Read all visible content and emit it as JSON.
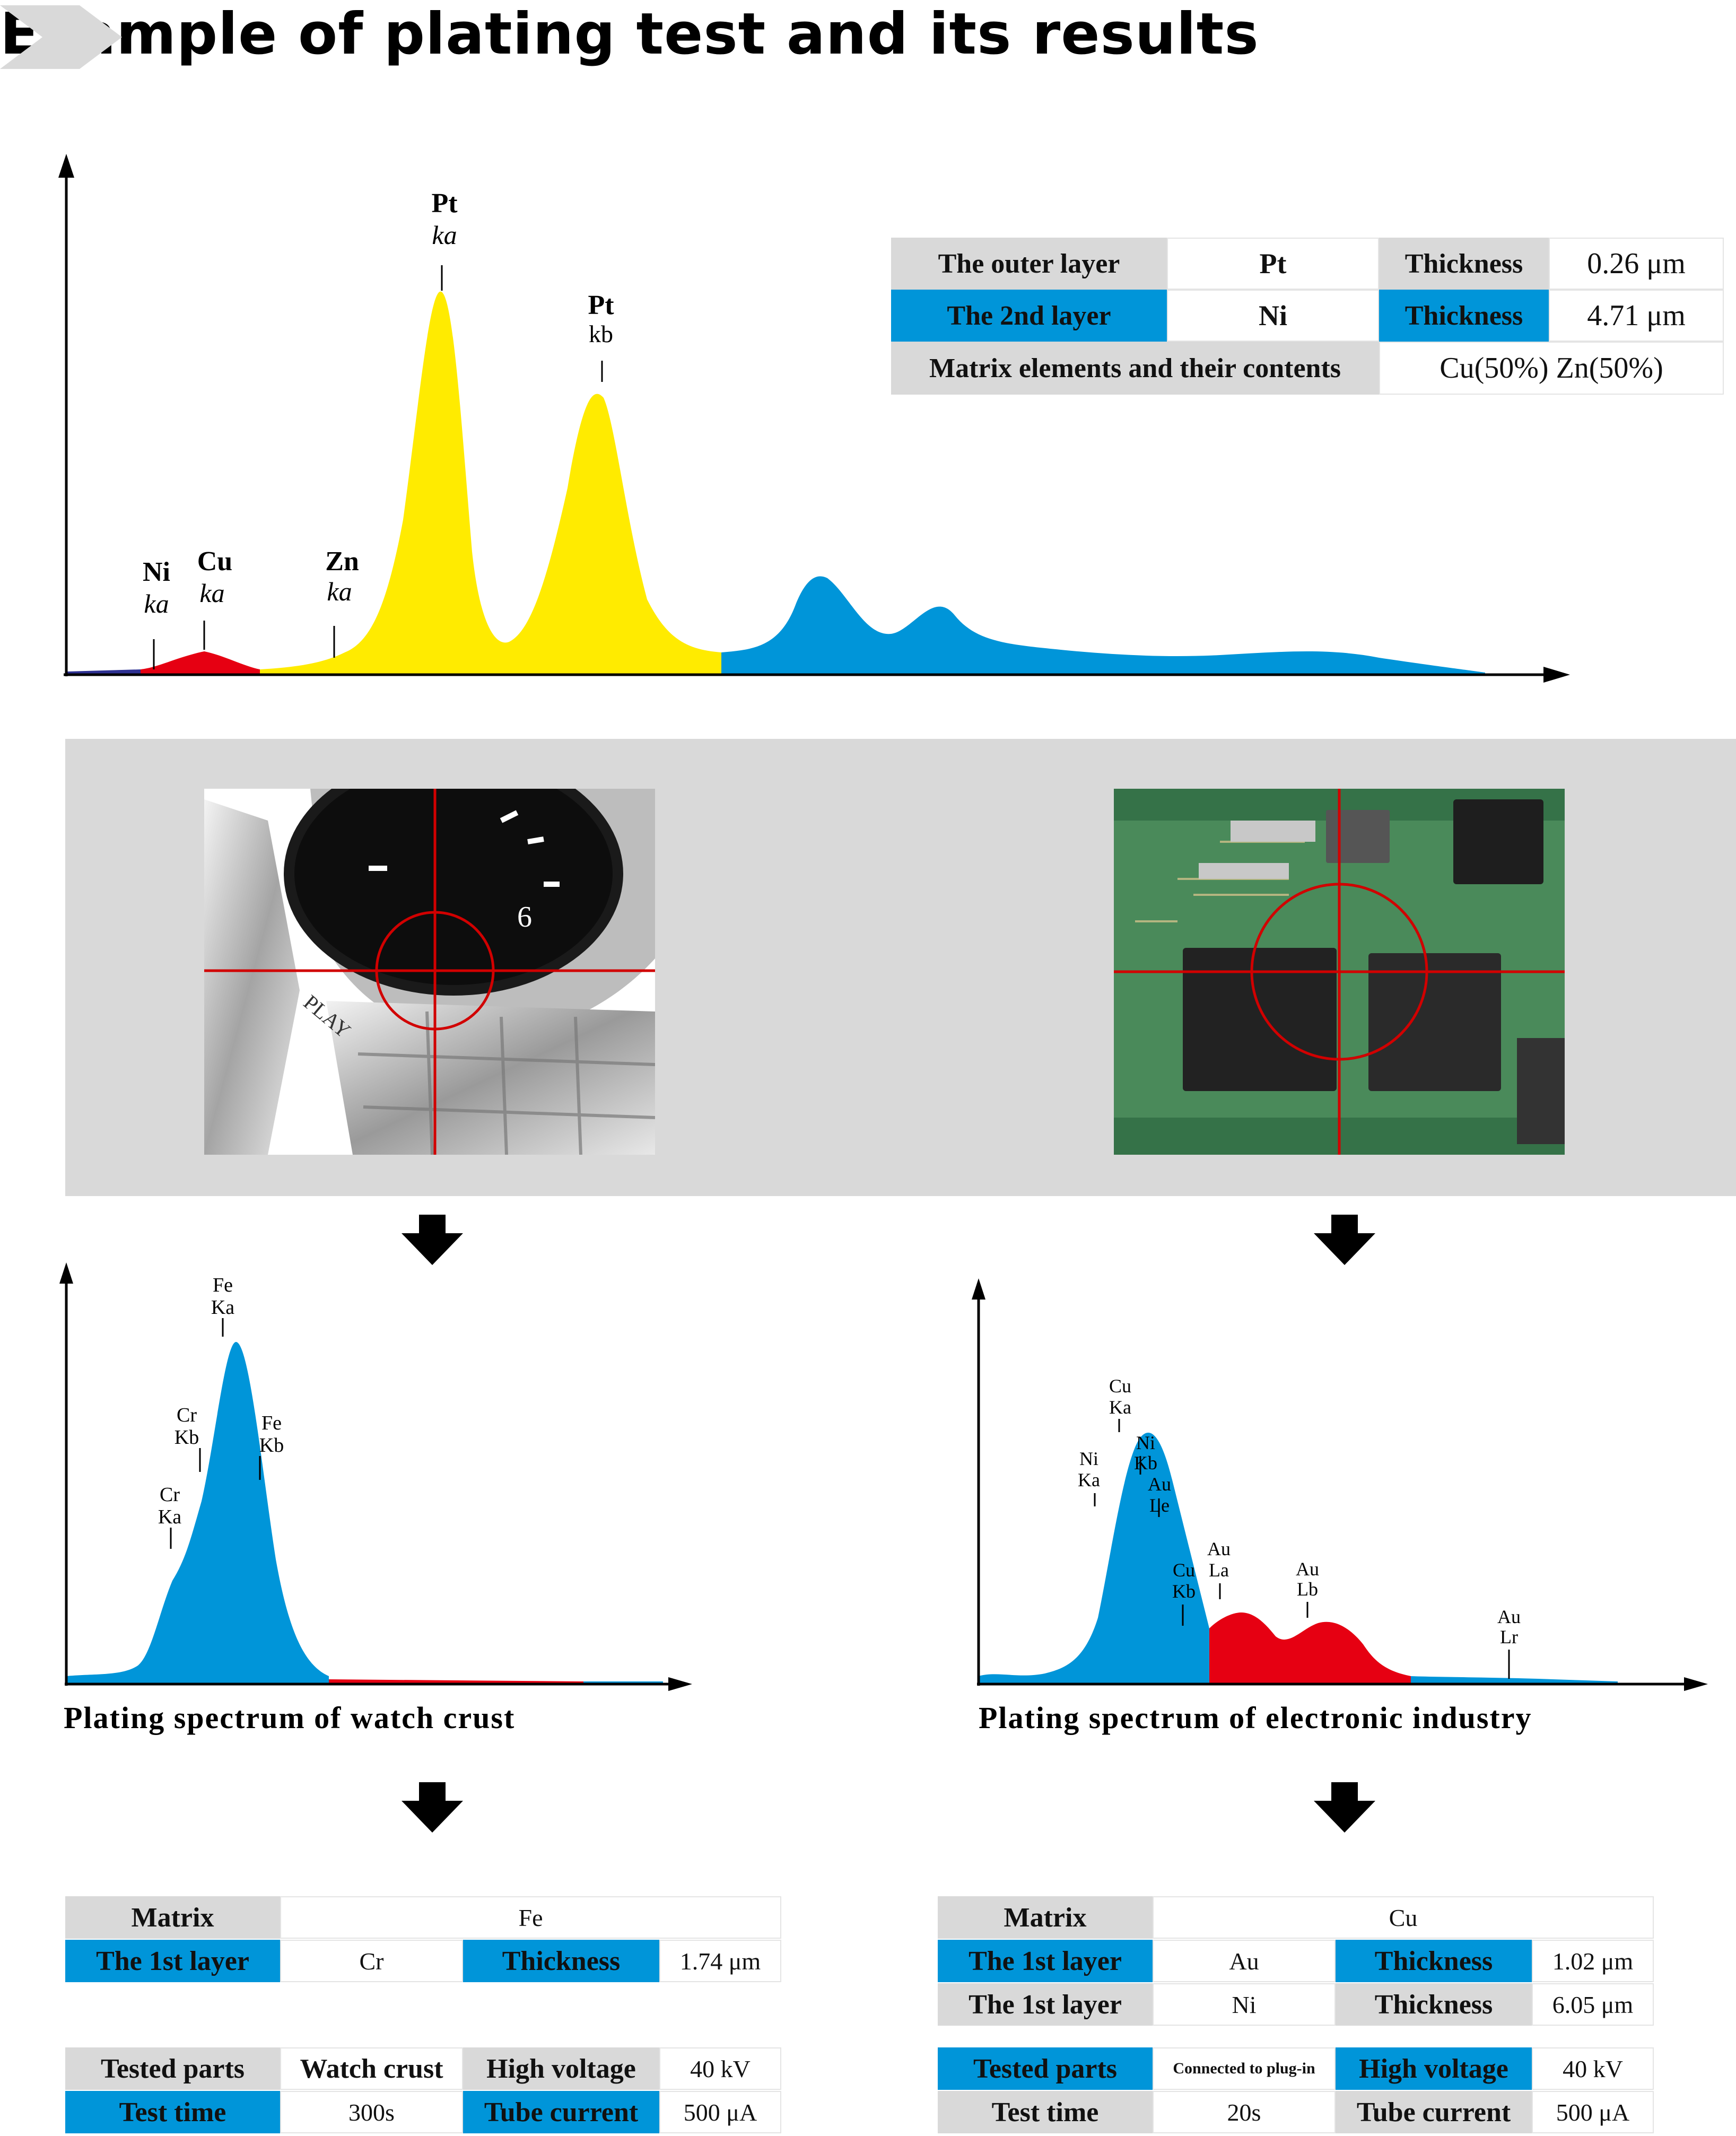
{
  "header": {
    "title": "Example of plating test and its results"
  },
  "colors": {
    "blue": "#0095d9",
    "yellow": "#ffeb00",
    "red": "#e60012",
    "navy": "#2e3192",
    "gray": "#d9d9d9"
  },
  "top_table": {
    "row1": {
      "label": "The outer layer",
      "element": "Pt",
      "key": "Thickness",
      "value": "0.26 μm"
    },
    "row2": {
      "label": "The 2nd layer",
      "element": "Ni",
      "key": "Thickness",
      "value": "4.71 μm"
    },
    "row3": {
      "label": "Matrix elements and their contents",
      "value": "Cu(50%) Zn(50%)"
    }
  },
  "watch_table": {
    "matrix_label": "Matrix",
    "matrix_value": "Fe",
    "layer_label": "The 1st layer",
    "layer_value": "Cr",
    "thickness_label": "Thickness",
    "thickness_value": "1.74 μm",
    "tested_label": "Tested parts",
    "tested_value": "Watch crust",
    "hv_label": "High voltage",
    "hv_value": "40 kV",
    "time_label": "Test time",
    "time_value": "300s",
    "tube_label": "Tube current",
    "tube_value": "500 μA"
  },
  "elec_table": {
    "matrix_label": "Matrix",
    "matrix_value": "Cu",
    "layer1_label": "The 1st layer",
    "layer1_value": "Au",
    "thickness1_label": "Thickness",
    "thickness1_value": "1.02 μm",
    "layer2_label": "The 1st layer",
    "layer2_value": "Ni",
    "thickness2_label": "Thickness",
    "thickness2_value": "6.05 μm",
    "tested_label": "Tested parts",
    "tested_value": "Connected to plug-in",
    "hv_label": "High voltage",
    "hv_value": "40 kV",
    "time_label": "Test time",
    "time_value": "20s",
    "tube_label": "Tube current",
    "tube_value": "500 μA"
  },
  "chart_data": [
    {
      "type": "area",
      "title": "",
      "peaks": [
        {
          "element": "Ni",
          "line": "ka",
          "x": 0.06,
          "y": 0.02,
          "color": "red"
        },
        {
          "element": "Cu",
          "line": "ka",
          "x": 0.095,
          "y": 0.06,
          "color": "red"
        },
        {
          "element": "Zn",
          "line": "ka",
          "x": 0.18,
          "y": 0.04,
          "color": "yellow"
        },
        {
          "element": "Pt",
          "line": "ka",
          "x": 0.25,
          "y": 1.0,
          "color": "yellow"
        },
        {
          "element": "Pt",
          "line": "kb",
          "x": 0.35,
          "y": 0.75,
          "color": "yellow"
        },
        {
          "x": 0.49,
          "y": 0.26,
          "color": "blue"
        },
        {
          "x": 0.59,
          "y": 0.16,
          "color": "blue"
        }
      ]
    },
    {
      "type": "area",
      "title": "Plating spectrum of watch crust",
      "peaks": [
        {
          "element": "Cr",
          "line": "Ka",
          "x": 0.17,
          "y": 0.36,
          "color": "blue"
        },
        {
          "element": "Cr",
          "line": "Kb",
          "x": 0.23,
          "y": 0.62,
          "color": "blue"
        },
        {
          "element": "Fe",
          "line": "Ka",
          "x": 0.27,
          "y": 1.0,
          "color": "blue"
        },
        {
          "element": "Fe",
          "line": "Kb",
          "x": 0.32,
          "y": 0.62,
          "color": "blue"
        }
      ]
    },
    {
      "type": "area",
      "title": "Plating spectrum of electronic industry",
      "peaks": [
        {
          "element": "Ni",
          "line": "Ka",
          "x": 0.29,
          "y": 0.55,
          "color": "blue"
        },
        {
          "element": "Cu",
          "line": "Ka",
          "x": 0.33,
          "y": 1.0,
          "color": "blue"
        },
        {
          "element": "Ni",
          "line": "Kb",
          "x": 0.37,
          "y": 0.8,
          "color": "blue"
        },
        {
          "element": "Au",
          "line": "Le",
          "x": 0.38,
          "y": 0.62,
          "color": "blue"
        },
        {
          "element": "Cu",
          "line": "Kb",
          "x": 0.41,
          "y": 0.22,
          "color": "blue"
        },
        {
          "element": "Au",
          "line": "La",
          "x": 0.46,
          "y": 0.29,
          "color": "red"
        },
        {
          "element": "Au",
          "line": "Lb",
          "x": 0.61,
          "y": 0.25,
          "color": "red"
        },
        {
          "element": "Au",
          "line": "Lr",
          "x": 0.8,
          "y": 0.03,
          "color": "blue"
        }
      ]
    }
  ]
}
